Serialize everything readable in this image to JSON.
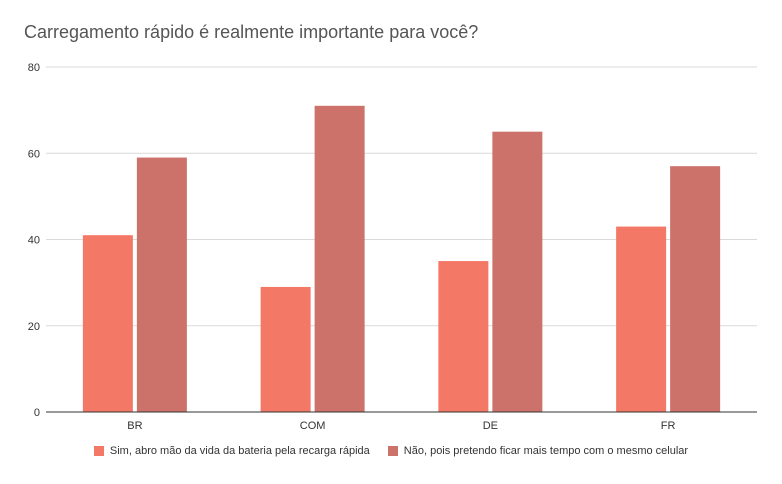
{
  "chart_data": {
    "type": "bar",
    "title": "Carregamento rápido é realmente importante para você?",
    "xlabel": "",
    "ylabel": "",
    "categories": [
      "BR",
      "COM",
      "DE",
      "FR"
    ],
    "ylim": [
      0,
      80
    ],
    "yticks": [
      0,
      20,
      40,
      60,
      80
    ],
    "grid": true,
    "legend_position": "bottom",
    "series": [
      {
        "name": "Sim, abro mão da vida da bateria pela recarga rápida",
        "color": "#f47866",
        "values": [
          41,
          29,
          35,
          43
        ]
      },
      {
        "name": "Não, pois pretendo ficar mais tempo com o mesmo celular",
        "color": "#cd726a",
        "values": [
          59,
          71,
          65,
          57
        ]
      }
    ]
  }
}
